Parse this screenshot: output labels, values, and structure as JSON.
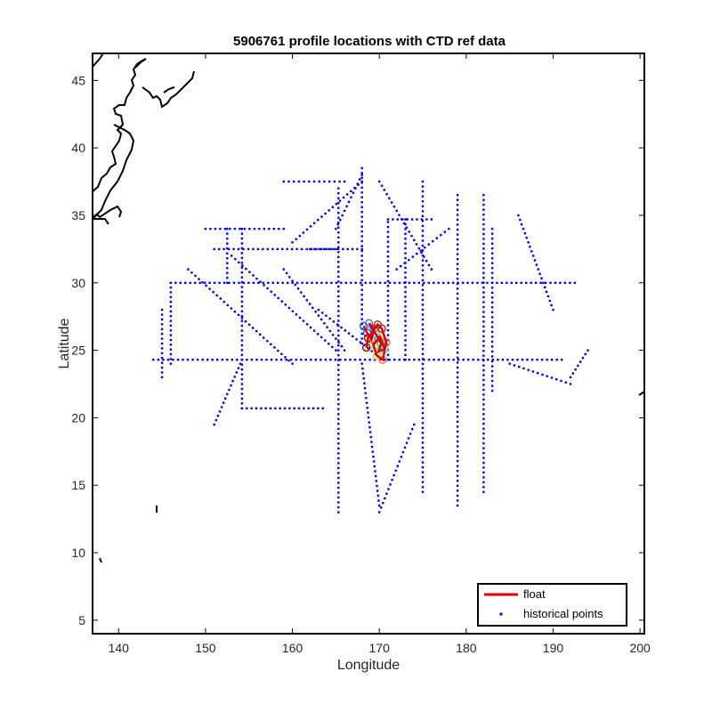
{
  "chart_data": {
    "type": "scatter",
    "title": "5906761 profile locations with CTD ref data",
    "xlabel": "Longitude",
    "ylabel": "Latitude",
    "xlim": [
      137,
      200.5
    ],
    "ylim": [
      4,
      47
    ],
    "xticks": [
      140,
      150,
      160,
      170,
      180,
      190,
      200
    ],
    "yticks": [
      5,
      10,
      15,
      20,
      25,
      30,
      35,
      40,
      45
    ],
    "grid": false,
    "legend_position": "bottom-right",
    "legend": [
      {
        "name": "float",
        "color": "#e00000",
        "style": "line"
      },
      {
        "name": "historical points",
        "color": "#0000ee",
        "style": "marker"
      }
    ],
    "series": [
      {
        "name": "historical points",
        "color": "#0000ee",
        "tracks": [
          {
            "x": [
              146,
              192.5
            ],
            "y": [
              30.0,
              30.0
            ]
          },
          {
            "x": [
              144,
              191
            ],
            "y": [
              24.3,
              24.3
            ]
          },
          {
            "x": [
              154.2,
              163.5
            ],
            "y": [
              20.7,
              20.7
            ]
          },
          {
            "x": [
              150,
              159
            ],
            "y": [
              34.0,
              34.0
            ]
          },
          {
            "x": [
              151,
              165
            ],
            "y": [
              32.5,
              32.5
            ]
          },
          {
            "x": [
              162,
              168
            ],
            "y": [
              32.5,
              32.5
            ]
          },
          {
            "x": [
              171,
              176
            ],
            "y": [
              34.7,
              34.7
            ]
          },
          {
            "x": [
              159,
              166
            ],
            "y": [
              37.5,
              37.5
            ]
          },
          {
            "x": [
              154.2,
              154.2
            ],
            "y": [
              20.7,
              34.0
            ]
          },
          {
            "x": [
              152.5,
              152.5
            ],
            "y": [
              30.0,
              34.0
            ]
          },
          {
            "x": [
              165.3,
              165.3
            ],
            "y": [
              13.0,
              37.0
            ]
          },
          {
            "x": [
              168.0,
              168.0
            ],
            "y": [
              25.5,
              38.5
            ]
          },
          {
            "x": [
              175.0,
              175.0
            ],
            "y": [
              14.5,
              37.5
            ]
          },
          {
            "x": [
              179.0,
              179.0
            ],
            "y": [
              13.5,
              36.5
            ]
          },
          {
            "x": [
              182.0,
              182.0
            ],
            "y": [
              14.5,
              36.5
            ]
          },
          {
            "x": [
              183.0,
              183.0
            ],
            "y": [
              22.0,
              34.0
            ]
          },
          {
            "x": [
              171.0,
              171.0
            ],
            "y": [
              24.3,
              34.5
            ]
          },
          {
            "x": [
              173.0,
              173.0
            ],
            "y": [
              24.3,
              34.7
            ]
          },
          {
            "x": [
              146.0,
              146.0
            ],
            "y": [
              24.0,
              30.0
            ]
          },
          {
            "x": [
              145.0,
              145.0
            ],
            "y": [
              23.0,
              28.0
            ]
          },
          {
            "x": [
              153.0,
              165.0
            ],
            "y": [
              32.0,
              25.0
            ]
          },
          {
            "x": [
              148.0,
              160.0
            ],
            "y": [
              31.0,
              24.0
            ]
          },
          {
            "x": [
              163.0,
              170.0
            ],
            "y": [
              28.0,
              24.5
            ]
          },
          {
            "x": [
              159.0,
              166.0
            ],
            "y": [
              31.0,
              25.0
            ]
          },
          {
            "x": [
              160.0,
              168.0
            ],
            "y": [
              33.0,
              37.5
            ]
          },
          {
            "x": [
              165.0,
              168.0
            ],
            "y": [
              34.0,
              38.0
            ]
          },
          {
            "x": [
              170.0,
              176.0
            ],
            "y": [
              37.5,
              31.0
            ]
          },
          {
            "x": [
              172.0,
              178.0
            ],
            "y": [
              31.0,
              34.0
            ]
          },
          {
            "x": [
              168.0,
              170.0
            ],
            "y": [
              24.0,
              13.5
            ]
          },
          {
            "x": [
              174.0,
              170.0
            ],
            "y": [
              19.5,
              13.0
            ]
          },
          {
            "x": [
              151.0,
              154.0
            ],
            "y": [
              19.5,
              24.0
            ]
          },
          {
            "x": [
              185.0,
              192.0
            ],
            "y": [
              24.0,
              22.5
            ]
          },
          {
            "x": [
              192.0,
              194.0
            ],
            "y": [
              23.0,
              25.0
            ]
          },
          {
            "x": [
              186.0,
              190.0
            ],
            "y": [
              35.0,
              28.0
            ]
          }
        ]
      },
      {
        "name": "float",
        "color": "#e00000",
        "x": [
          168.2,
          168.6,
          169.1,
          169.4,
          168.8,
          169.6,
          170.2,
          169.9,
          170.6,
          170.1,
          169.3,
          169.7,
          170.4,
          170.8,
          170.3,
          169.8,
          168.7,
          168.5
        ],
        "y": [
          26.8,
          26.3,
          25.8,
          26.6,
          27.0,
          26.2,
          25.5,
          24.9,
          25.1,
          26.0,
          25.4,
          24.6,
          24.3,
          25.6,
          26.6,
          26.9,
          25.9,
          25.2
        ]
      }
    ],
    "float_profile_colors": [
      "#1f5fe0",
      "#2a8af0",
      "#20c8e0",
      "#40e0c0",
      "#e0e020",
      "#f08020",
      "#d02020",
      "#a01010"
    ]
  }
}
